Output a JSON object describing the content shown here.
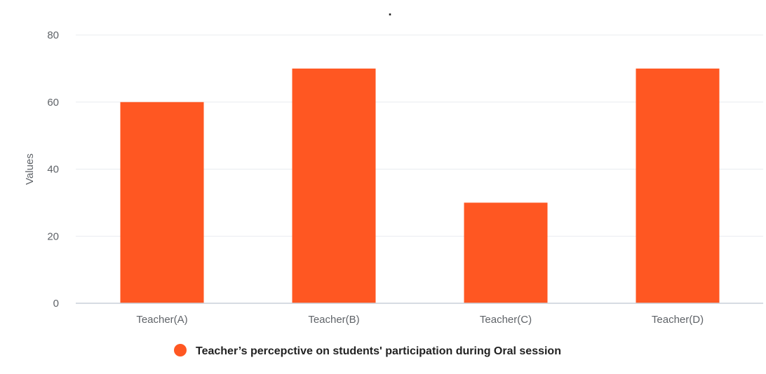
{
  "chart_data": {
    "type": "bar",
    "title": ".",
    "categories": [
      "Teacher(A)",
      "Teacher(B)",
      "Teacher(C)",
      "Teacher(D)"
    ],
    "series": [
      {
        "name": "Teacher’s percepctive on students' participation during Oral session",
        "values": [
          60,
          70,
          30,
          70
        ],
        "color": "#ff5722"
      }
    ],
    "xlabel": "",
    "ylabel": "Values",
    "ylim": [
      0,
      80
    ],
    "yticks": [
      0,
      20,
      40,
      60,
      80
    ],
    "grid": true,
    "legend_position": "bottom-center"
  }
}
